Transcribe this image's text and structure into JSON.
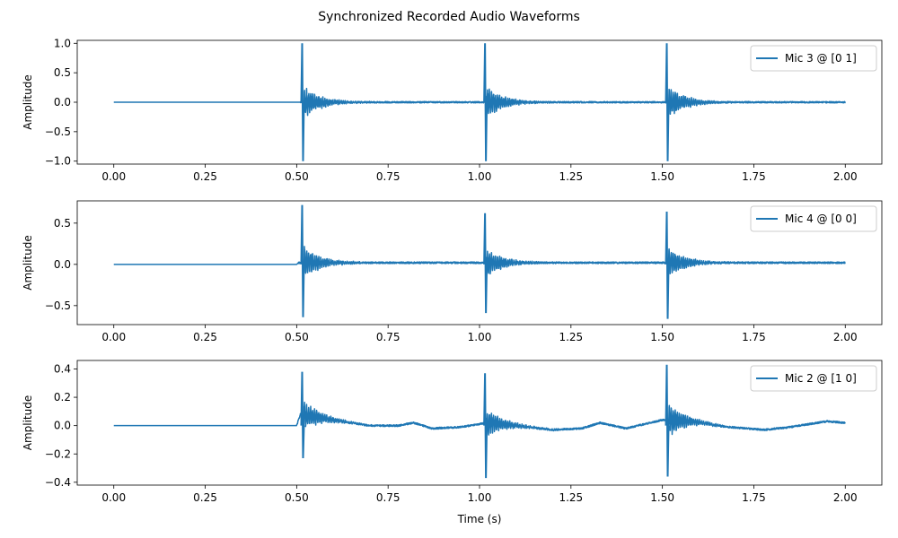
{
  "figure": {
    "title": "Synchronized Recorded Audio Waveforms"
  },
  "chart_data": [
    {
      "type": "line",
      "title": "",
      "xlabel": "",
      "ylabel": "Amplitude",
      "xlim": [
        -0.1,
        2.1
      ],
      "ylim": [
        -1.05,
        1.05
      ],
      "xticks": [
        0.0,
        0.25,
        0.5,
        0.75,
        1.0,
        1.25,
        1.5,
        1.75,
        2.0
      ],
      "xtick_labels": [
        "0.00",
        "0.25",
        "0.50",
        "0.75",
        "1.00",
        "1.25",
        "1.50",
        "1.75",
        "2.00"
      ],
      "yticks": [
        1.0,
        0.5,
        0.0,
        -0.5,
        -1.0
      ],
      "ytick_labels": [
        "1.0",
        "0.5",
        "0.0",
        "−0.5",
        "−1.0"
      ],
      "legend": {
        "position": "upper right",
        "entries": [
          "Mic 3 @ [0 1]"
        ]
      },
      "series": [
        {
          "name": "Mic 3 @ [0 1]",
          "color": "#1f77b4",
          "onset_time": 0.51,
          "envelope": [
            {
              "t": 0.0,
              "v": 0.0
            },
            {
              "t": 0.5,
              "v": 0.0
            },
            {
              "t": 0.51,
              "v": 0.0
            }
          ],
          "impulses": [
            {
              "t": 0.515,
              "max": 1.0,
              "min": -1.0
            },
            {
              "t": 1.015,
              "max": 1.0,
              "min": -1.0
            },
            {
              "t": 1.512,
              "max": 1.0,
              "min": -1.0
            }
          ],
          "noise_floor": 0.012
        }
      ]
    },
    {
      "type": "line",
      "title": "",
      "xlabel": "",
      "ylabel": "Amplitude",
      "xlim": [
        -0.1,
        2.1
      ],
      "ylim": [
        -0.73,
        0.77
      ],
      "xticks": [
        0.0,
        0.25,
        0.5,
        0.75,
        1.0,
        1.25,
        1.5,
        1.75,
        2.0
      ],
      "xtick_labels": [
        "0.00",
        "0.25",
        "0.50",
        "0.75",
        "1.00",
        "1.25",
        "1.50",
        "1.75",
        "2.00"
      ],
      "yticks": [
        0.5,
        0.0,
        -0.5
      ],
      "ytick_labels": [
        "0.5",
        "0.0",
        "−0.5"
      ],
      "legend": {
        "position": "upper right",
        "entries": [
          "Mic 4 @ [0 0]"
        ]
      },
      "series": [
        {
          "name": "Mic 4 @ [0 0]",
          "color": "#1f77b4",
          "onset_time": 0.505,
          "envelope": [
            {
              "t": 0.0,
              "v": 0.0
            },
            {
              "t": 0.5,
              "v": 0.0
            },
            {
              "t": 0.505,
              "v": 0.02
            }
          ],
          "impulses": [
            {
              "t": 0.515,
              "max": 0.72,
              "min": -0.64
            },
            {
              "t": 1.015,
              "max": 0.62,
              "min": -0.59
            },
            {
              "t": 1.512,
              "max": 0.64,
              "min": -0.66
            }
          ],
          "noise_floor": 0.01
        }
      ]
    },
    {
      "type": "line",
      "title": "",
      "xlabel": "Time (s)",
      "ylabel": "Amplitude",
      "xlim": [
        -0.1,
        2.1
      ],
      "ylim": [
        -0.42,
        0.46
      ],
      "xticks": [
        0.0,
        0.25,
        0.5,
        0.75,
        1.0,
        1.25,
        1.5,
        1.75,
        2.0
      ],
      "xtick_labels": [
        "0.00",
        "0.25",
        "0.50",
        "0.75",
        "1.00",
        "1.25",
        "1.50",
        "1.75",
        "2.00"
      ],
      "yticks": [
        0.4,
        0.2,
        0.0,
        -0.2,
        -0.4
      ],
      "ytick_labels": [
        "0.4",
        "0.2",
        "0.0",
        "−0.2",
        "−0.4"
      ],
      "legend": {
        "position": "upper right",
        "entries": [
          "Mic 2 @ [1 0]"
        ]
      },
      "series": [
        {
          "name": "Mic 2 @ [1 0]",
          "color": "#1f77b4",
          "onset_time": 0.5,
          "envelope": [
            {
              "t": 0.0,
              "v": 0.0
            },
            {
              "t": 0.5,
              "v": 0.0
            },
            {
              "t": 0.51,
              "v": 0.08
            },
            {
              "t": 0.6,
              "v": 0.04
            },
            {
              "t": 0.7,
              "v": 0.0
            },
            {
              "t": 0.78,
              "v": 0.0
            },
            {
              "t": 0.82,
              "v": 0.02
            },
            {
              "t": 0.87,
              "v": -0.02
            },
            {
              "t": 0.95,
              "v": -0.01
            },
            {
              "t": 1.02,
              "v": 0.02
            },
            {
              "t": 1.1,
              "v": 0.0
            },
            {
              "t": 1.2,
              "v": -0.03
            },
            {
              "t": 1.28,
              "v": -0.02
            },
            {
              "t": 1.33,
              "v": 0.02
            },
            {
              "t": 1.4,
              "v": -0.02
            },
            {
              "t": 1.5,
              "v": 0.04
            },
            {
              "t": 1.58,
              "v": 0.03
            },
            {
              "t": 1.68,
              "v": -0.01
            },
            {
              "t": 1.78,
              "v": -0.03
            },
            {
              "t": 1.85,
              "v": -0.01
            },
            {
              "t": 1.95,
              "v": 0.03
            },
            {
              "t": 2.0,
              "v": 0.02
            }
          ],
          "impulses": [
            {
              "t": 0.515,
              "max": 0.38,
              "min": -0.23
            },
            {
              "t": 1.015,
              "max": 0.37,
              "min": -0.37
            },
            {
              "t": 1.512,
              "max": 0.43,
              "min": -0.36
            }
          ],
          "noise_floor": 0.006
        }
      ]
    }
  ]
}
